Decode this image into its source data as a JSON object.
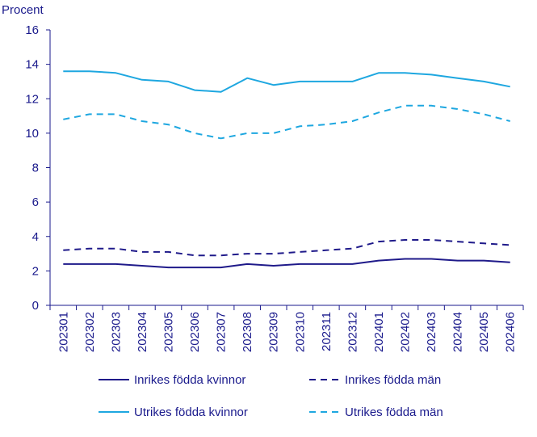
{
  "chart_data": {
    "type": "line",
    "title": "",
    "ylabel": "Procent",
    "xlabel": "",
    "ylim": [
      0,
      16
    ],
    "yticks": [
      0,
      2,
      4,
      6,
      8,
      10,
      12,
      14,
      16
    ],
    "grid": false,
    "legend_position": "bottom",
    "categories": [
      "202301",
      "202302",
      "202303",
      "202304",
      "202305",
      "202306",
      "202307",
      "202308",
      "202309",
      "202310",
      "202311",
      "202312",
      "202401",
      "202402",
      "202403",
      "202404",
      "202405",
      "202406"
    ],
    "series": [
      {
        "name": "Inrikes födda kvinnor",
        "color": "#1f1a8a",
        "dash": "solid",
        "values": [
          2.4,
          2.4,
          2.4,
          2.3,
          2.2,
          2.2,
          2.2,
          2.4,
          2.3,
          2.4,
          2.4,
          2.4,
          2.6,
          2.7,
          2.7,
          2.6,
          2.6,
          2.5
        ]
      },
      {
        "name": "Inrikes födda män",
        "color": "#1f1a8a",
        "dash": "dashed",
        "values": [
          3.2,
          3.3,
          3.3,
          3.1,
          3.1,
          2.9,
          2.9,
          3.0,
          3.0,
          3.1,
          3.2,
          3.3,
          3.7,
          3.8,
          3.8,
          3.7,
          3.6,
          3.5
        ]
      },
      {
        "name": "Utrikes födda kvinnor",
        "color": "#1ea7e0",
        "dash": "solid",
        "values": [
          13.6,
          13.6,
          13.5,
          13.1,
          13.0,
          12.5,
          12.4,
          13.2,
          12.8,
          13.0,
          13.0,
          13.0,
          13.5,
          13.5,
          13.4,
          13.2,
          13.0,
          12.7
        ]
      },
      {
        "name": "Utrikes födda män",
        "color": "#1ea7e0",
        "dash": "dashed",
        "values": [
          10.8,
          11.1,
          11.1,
          10.7,
          10.5,
          10.0,
          9.7,
          10.0,
          10.0,
          10.4,
          10.5,
          10.7,
          11.2,
          11.6,
          11.6,
          11.4,
          11.1,
          10.7
        ]
      }
    ]
  }
}
